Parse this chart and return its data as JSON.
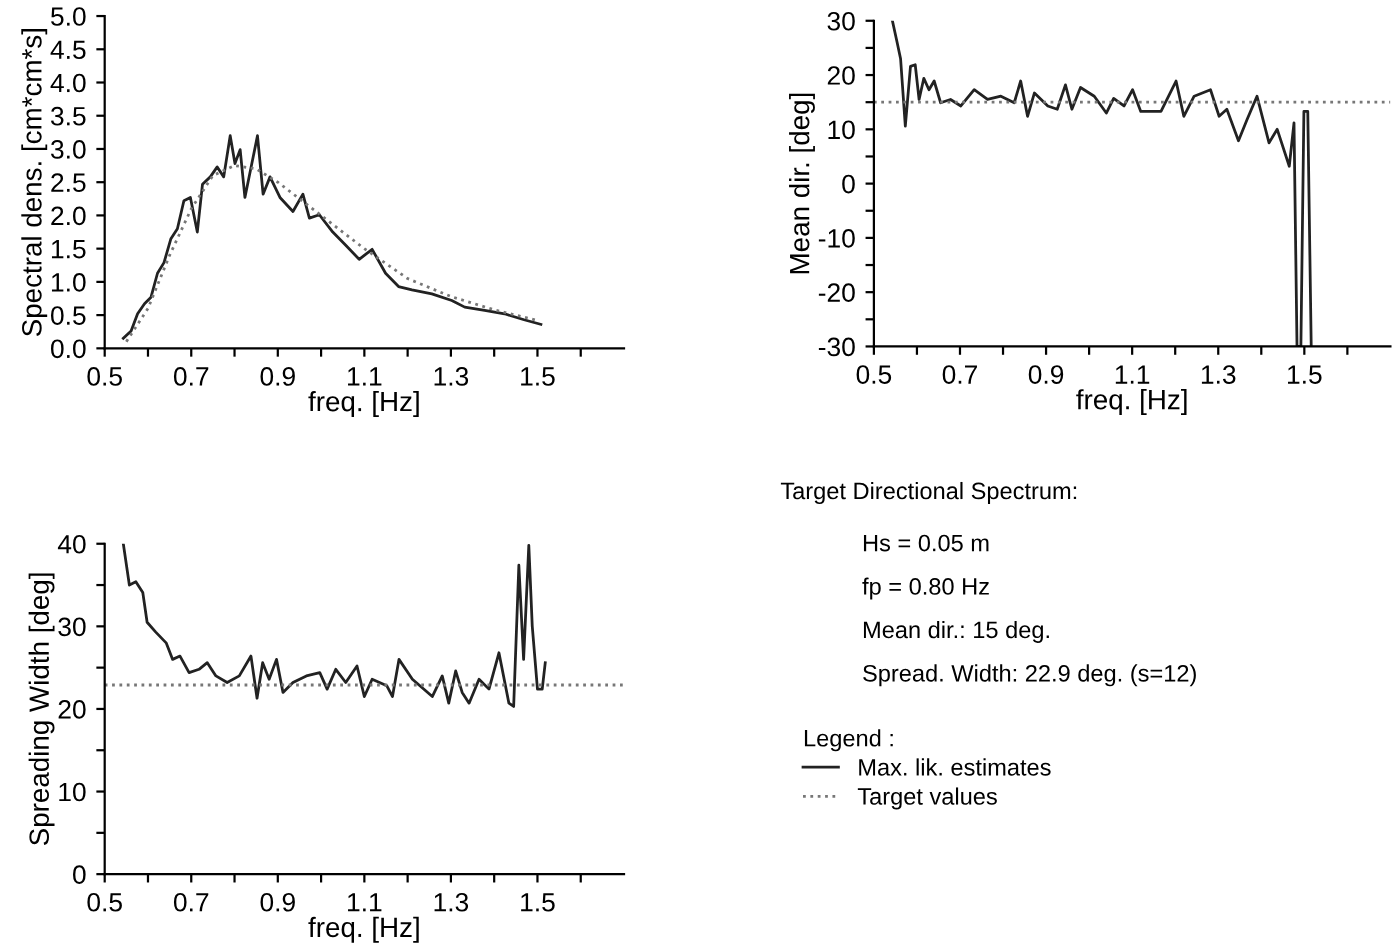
{
  "chart_data": [
    {
      "type": "line",
      "ylabel": "Spectral dens. [cm*cm*s]",
      "xlabel": "freq. [Hz]",
      "xlim": [
        0.5,
        1.7
      ],
      "ylim": [
        0,
        5
      ],
      "xticks": [
        0.5,
        {
          "value": 0.6,
          "label": null
        },
        0.7,
        {
          "value": 0.8,
          "label": null
        },
        0.9,
        {
          "value": 1.0,
          "label": null
        },
        1.1,
        {
          "value": 1.2,
          "label": null
        },
        1.3,
        {
          "value": 1.4,
          "label": null
        },
        1.5,
        {
          "value": 1.6,
          "label": null
        }
      ],
      "yticks": [
        {
          "value": 0,
          "label": "0.0"
        },
        0.5,
        {
          "value": 1,
          "label": "1.0"
        },
        1.5,
        {
          "value": 2,
          "label": "2.0"
        },
        2.5,
        {
          "value": 3,
          "label": "3.0"
        },
        3.5,
        {
          "value": 4,
          "label": "4.0"
        },
        4.5,
        {
          "value": 5,
          "label": "5.0"
        }
      ],
      "grid": false,
      "legend": "bottom right",
      "legend_title": "Legend :",
      "series": [
        {
          "name": "Max. lik. estimates",
          "color": "#222222",
          "line_style": "solid",
          "x": [
            0.543,
            0.561,
            0.576,
            0.592,
            0.607,
            0.622,
            0.637,
            0.653,
            0.668,
            0.683,
            0.698,
            0.714,
            0.726,
            0.744,
            0.76,
            0.775,
            0.79,
            0.801,
            0.813,
            0.824,
            0.84,
            0.853,
            0.866,
            0.882,
            0.905,
            0.935,
            0.958,
            0.973,
            0.996,
            1.027,
            1.057,
            1.088,
            1.118,
            1.149,
            1.179,
            1.21,
            1.256,
            1.302,
            1.332,
            1.378,
            1.424,
            1.469,
            1.508
          ],
          "values": [
            0.15,
            0.26,
            0.52,
            0.67,
            0.77,
            1.13,
            1.29,
            1.65,
            1.8,
            2.22,
            2.27,
            1.75,
            2.47,
            2.58,
            2.73,
            2.58,
            3.2,
            2.78,
            2.99,
            2.27,
            2.78,
            3.2,
            2.32,
            2.58,
            2.27,
            2.06,
            2.32,
            1.96,
            2.01,
            1.75,
            1.55,
            1.34,
            1.49,
            1.13,
            0.93,
            0.88,
            0.82,
            0.72,
            0.62,
            0.57,
            0.52,
            0.43,
            0.36
          ]
        },
        {
          "name": "Target values",
          "color": "#777777",
          "line_style": "dotted",
          "x": [
            0.55,
            0.6,
            0.65,
            0.7,
            0.75,
            0.8,
            0.85,
            0.9,
            0.95,
            1.0,
            1.1,
            1.2,
            1.3,
            1.4,
            1.5
          ],
          "values": [
            0.1,
            0.6,
            1.4,
            2.1,
            2.6,
            2.75,
            2.7,
            2.5,
            2.25,
            2.0,
            1.5,
            1.05,
            0.78,
            0.58,
            0.42
          ]
        }
      ]
    },
    {
      "type": "line",
      "ylabel": "Mean dir. [deg]",
      "xlabel": "freq. [Hz]",
      "xlim": [
        0.5,
        1.7
      ],
      "ylim": [
        -30,
        30
      ],
      "xticks": [
        0.5,
        {
          "value": 0.6,
          "label": null
        },
        0.7,
        {
          "value": 0.8,
          "label": null
        },
        0.9,
        {
          "value": 1.0,
          "label": null
        },
        1.1,
        {
          "value": 1.2,
          "label": null
        },
        1.3,
        {
          "value": 1.4,
          "label": null
        },
        1.5,
        {
          "value": 1.6,
          "label": null
        }
      ],
      "yticks": [
        -30,
        {
          "value": -25,
          "label": null
        },
        -20,
        {
          "value": -15,
          "label": null
        },
        -10,
        {
          "value": -5,
          "label": null
        },
        0,
        {
          "value": 5,
          "label": null
        },
        10,
        {
          "value": 15,
          "label": null
        },
        20,
        {
          "value": 25,
          "label": null
        },
        30
      ],
      "grid": false,
      "ref_lines": [
        {
          "axis": "y",
          "value": 15,
          "color": "#777777",
          "line_style": "dotted"
        }
      ],
      "series": [
        {
          "color": "#222222",
          "line_style": "solid",
          "x": [
            0.543,
            0.554,
            0.562,
            0.573,
            0.585,
            0.596,
            0.605,
            0.616,
            0.628,
            0.64,
            0.655,
            0.678,
            0.702,
            0.733,
            0.764,
            0.795,
            0.826,
            0.841,
            0.857,
            0.873,
            0.904,
            0.926,
            0.945,
            0.96,
            0.98,
            1.012,
            1.04,
            1.057,
            1.081,
            1.101,
            1.12,
            1.167,
            1.202,
            1.22,
            1.244,
            1.282,
            1.302,
            1.32,
            1.347,
            1.367,
            1.39,
            1.418,
            1.437,
            1.465,
            1.476,
            1.483,
            1.492,
            1.499,
            1.508,
            1.516
          ],
          "values": [
            30,
            26,
            23,
            10.6,
            21.6,
            21.9,
            15.5,
            19.4,
            17.3,
            18.9,
            14.9,
            15.5,
            14.3,
            17.3,
            15.5,
            16.1,
            14.9,
            18.9,
            12.4,
            16.7,
            14.3,
            13.7,
            18.2,
            13.7,
            17.7,
            16.1,
            13,
            15.7,
            14.3,
            17.3,
            13.3,
            13.3,
            18.9,
            12.4,
            16.1,
            17.3,
            12.4,
            13.7,
            7.9,
            11.8,
            16.1,
            7.5,
            10,
            3.2,
            11.2,
            -30,
            -30,
            13.3,
            13.3,
            -30
          ]
        }
      ]
    },
    {
      "type": "line",
      "ylabel": "Spreading Width [deg]",
      "xlabel": "freq. [Hz]",
      "xlim": [
        0.5,
        1.7
      ],
      "ylim": [
        0,
        40
      ],
      "xticks": [
        0.5,
        {
          "value": 0.6,
          "label": null
        },
        0.7,
        {
          "value": 0.8,
          "label": null
        },
        0.9,
        {
          "value": 1.0,
          "label": null
        },
        1.1,
        {
          "value": 1.2,
          "label": null
        },
        1.3,
        {
          "value": 1.4,
          "label": null
        },
        1.5,
        {
          "value": 1.6,
          "label": null
        }
      ],
      "yticks": [
        0,
        {
          "value": 5,
          "label": null
        },
        10,
        {
          "value": 15,
          "label": null
        },
        20,
        {
          "value": 25,
          "label": null
        },
        30,
        {
          "value": 35,
          "label": null
        },
        40
      ],
      "grid": false,
      "ref_lines": [
        {
          "axis": "y",
          "value": 22.9,
          "color": "#777777",
          "line_style": "dotted"
        }
      ],
      "series": [
        {
          "color": "#222222",
          "line_style": "solid",
          "x": [
            0.543,
            0.557,
            0.572,
            0.588,
            0.598,
            0.618,
            0.642,
            0.657,
            0.674,
            0.695,
            0.718,
            0.737,
            0.757,
            0.783,
            0.811,
            0.838,
            0.852,
            0.865,
            0.88,
            0.897,
            0.912,
            0.935,
            0.966,
            0.997,
            1.014,
            1.034,
            1.057,
            1.083,
            1.1,
            1.118,
            1.152,
            1.165,
            1.18,
            1.211,
            1.257,
            1.28,
            1.295,
            1.311,
            1.326,
            1.342,
            1.365,
            1.388,
            1.411,
            1.434,
            1.445,
            1.457,
            1.468,
            1.48,
            1.488,
            1.5,
            1.511,
            1.518
          ],
          "values": [
            40,
            35,
            35.4,
            34.1,
            30.5,
            29.3,
            28,
            26,
            26.4,
            24.4,
            24.8,
            25.6,
            24,
            23.2,
            24,
            26.4,
            21.3,
            25.6,
            23.6,
            26,
            22,
            23.2,
            24,
            24.4,
            22.4,
            24.8,
            23.2,
            25.2,
            21.5,
            23.6,
            22.8,
            21.5,
            26,
            23.6,
            21.5,
            24,
            20.7,
            24.6,
            22,
            20.7,
            23.6,
            22.4,
            26.8,
            20.7,
            20.3,
            37.4,
            26,
            39.8,
            30,
            22.4,
            22.4,
            25.6
          ]
        }
      ]
    },
    {
      "type": "other",
      "title": "Target Directional Spectrum:",
      "annotations": [
        "Hs = 0.05 m",
        "fp = 0.80 Hz",
        "Mean dir.: 15 deg.",
        "Spread. Width: 22.9 deg. (s=12)"
      ]
    }
  ]
}
